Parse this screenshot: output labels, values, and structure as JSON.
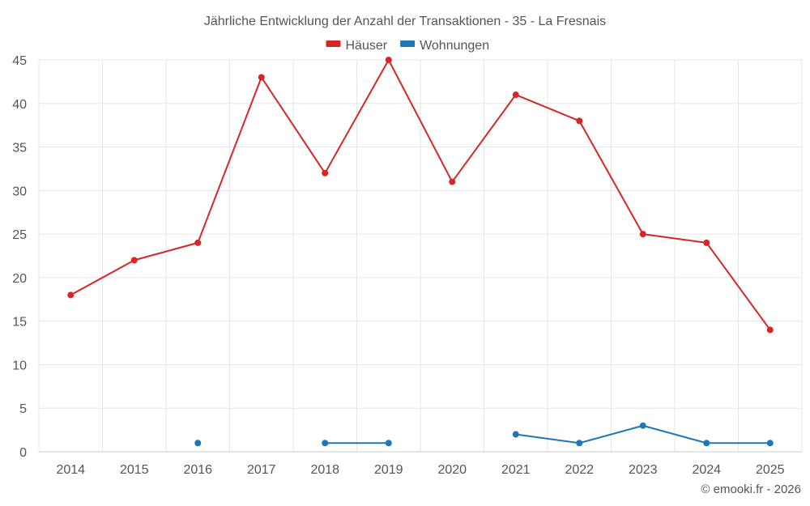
{
  "chart_data": {
    "type": "line",
    "title": "Jährliche Entwicklung der Anzahl der Transaktionen - 35 - La Fresnais",
    "xlabel": "",
    "ylabel": "",
    "categories": [
      "2014",
      "2015",
      "2016",
      "2017",
      "2018",
      "2019",
      "2020",
      "2021",
      "2022",
      "2023",
      "2024",
      "2025"
    ],
    "ylim": [
      0,
      45
    ],
    "yticks": [
      0,
      5,
      10,
      15,
      20,
      25,
      30,
      35,
      40,
      45
    ],
    "grid": true,
    "legend_position": "top-center",
    "series": [
      {
        "name": "Häuser",
        "color": "#d62728",
        "values": [
          18,
          22,
          24,
          43,
          32,
          45,
          31,
          41,
          38,
          25,
          24,
          14
        ]
      },
      {
        "name": "Wohnungen",
        "color": "#1f77b4",
        "values": [
          null,
          null,
          1,
          null,
          1,
          1,
          null,
          2,
          1,
          3,
          1,
          1
        ]
      }
    ],
    "credit": "© emooki.fr - 2026"
  }
}
